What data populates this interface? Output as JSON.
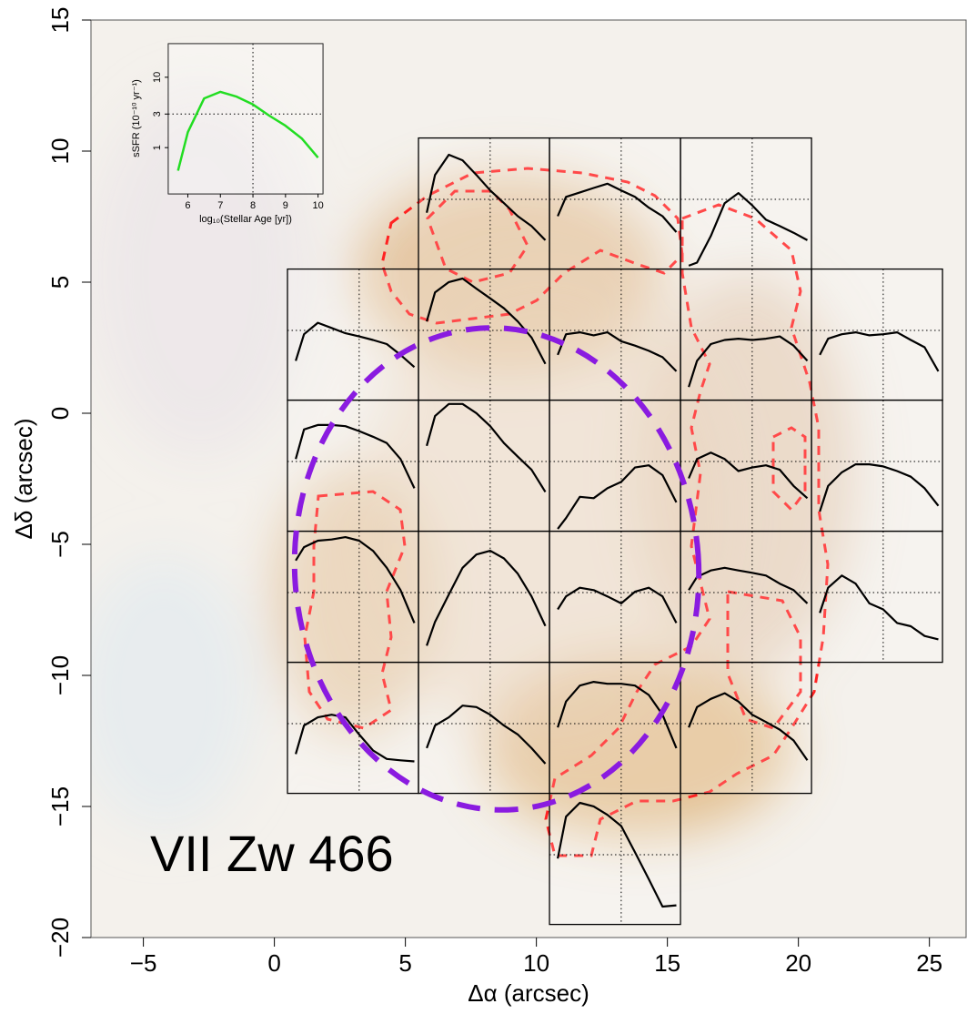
{
  "chart_data": {
    "type": "panel-map",
    "xlabel": "Δα (arcsec)",
    "ylabel": "Δδ (arcsec)",
    "label": "VII Zw 466",
    "xlim": [
      -7,
      26.4
    ],
    "ylim": [
      -20,
      15
    ],
    "xticks": [
      {
        "value": -5,
        "label": "−5"
      },
      0,
      5,
      10,
      15,
      20,
      25
    ],
    "yticks": [
      {
        "value": -20,
        "label": "−20"
      },
      {
        "value": -15,
        "label": "−15"
      },
      {
        "value": -10,
        "label": "−10"
      },
      {
        "value": -5,
        "label": "−5"
      },
      0,
      5,
      10,
      15
    ],
    "inset": {
      "xlabel": "log₁₀(Stellar Age [yr])",
      "ylabel": "sSFR (10⁻¹⁰ yr⁻¹)",
      "xlim": [
        5.4,
        10.15
      ],
      "ylim": [
        0.22,
        30
      ],
      "ylog": true,
      "xticks": [
        6,
        7,
        8,
        9,
        10
      ],
      "yticks": [
        1,
        3,
        10
      ],
      "ref_x": 8,
      "ref_y": 3,
      "color": "#22dd22",
      "x": [
        5.7,
        6,
        6.5,
        7,
        7.5,
        8,
        8.5,
        9,
        9.5,
        10
      ],
      "values": [
        0.47,
        1.66,
        5,
        6.2,
        5.3,
        4.1,
        2.85,
        2.05,
        1.35,
        0.72
      ]
    },
    "panels": {
      "color": "#000000",
      "items": [
        {
          "xlim": [
            5.5,
            10.5
          ],
          "ylim": [
            5.5,
            10.5
          ],
          "values": [
            1.82,
            7.5,
            16,
            13,
            7.5,
            4.2,
            2.6,
            1.6,
            1.1,
            0.65
          ]
        },
        {
          "xlim": [
            10.5,
            15.5
          ],
          "ylim": [
            5.5,
            10.5
          ],
          "values": [
            1.6,
            3.3,
            3.9,
            4.6,
            5.4,
            4.2,
            3.3,
            2.2,
            1.6,
            0.88
          ]
        },
        {
          "xlim": [
            15.5,
            20.5
          ],
          "ylim": [
            5.5,
            10.5
          ],
          "values": [
            0.25,
            0.28,
            0.76,
            2.6,
            3.8,
            2.4,
            1.4,
            1.1,
            0.86,
            0.65
          ]
        },
        {
          "xlim": [
            0.5,
            5.5
          ],
          "ylim": [
            0.5,
            5.5
          ],
          "values": [
            0.96,
            2.6,
            4.0,
            3.3,
            2.7,
            2.4,
            2.1,
            1.8,
            1.2,
            0.76
          ]
        },
        {
          "xlim": [
            5.5,
            10.5
          ],
          "ylim": [
            0.5,
            5.5
          ],
          "values": [
            4.2,
            12.5,
            18.4,
            21,
            14.4,
            10,
            6.9,
            4.2,
            2.3,
            0.86
          ]
        },
        {
          "xlim": [
            10.5,
            15.5
          ],
          "ylim": [
            0.5,
            5.5
          ],
          "values": [
            1.2,
            2.6,
            2.8,
            2.5,
            2.8,
            2.0,
            1.7,
            1.4,
            1.1,
            0.65
          ]
        },
        {
          "xlim": [
            15.5,
            20.5
          ],
          "ylim": [
            0.5,
            5.5
          ],
          "values": [
            0.36,
            0.96,
            1.8,
            2.1,
            2.2,
            2.1,
            2.2,
            2.4,
            1.7,
            0.96
          ]
        },
        {
          "xlim": [
            20.5,
            25.5
          ],
          "ylim": [
            0.5,
            5.5
          ],
          "values": [
            1.2,
            2.2,
            2.6,
            2.8,
            2.5,
            2.6,
            2.8,
            2.1,
            1.6,
            0.65
          ]
        },
        {
          "xlim": [
            0.5,
            5.5
          ],
          "ylim": [
            -4.5,
            0.5
          ],
          "values": [
            3.3,
            10,
            11.8,
            11.8,
            11.3,
            9.4,
            7.6,
            6.0,
            3.3,
            1.1
          ]
        },
        {
          "xlim": [
            5.5,
            10.5
          ],
          "ylim": [
            -4.5,
            0.5
          ],
          "values": [
            5.4,
            16.5,
            26,
            26,
            18.4,
            11.3,
            6,
            3.6,
            2.2,
            0.96
          ]
        },
        {
          "xlim": [
            10.5,
            15.5
          ],
          "ylim": [
            -4.5,
            0.5
          ],
          "values": [
            0.24,
            0.36,
            0.8,
            0.76,
            1.1,
            1.4,
            2.4,
            2.6,
            1.8,
            0.65
          ]
        },
        {
          "xlim": [
            15.5,
            20.5
          ],
          "ylim": [
            -4.5,
            0.5
          ],
          "values": [
            1.6,
            3.3,
            4.2,
            3.3,
            2.1,
            2.4,
            2.6,
            2.2,
            1.2,
            0.76
          ]
        },
        {
          "xlim": [
            20.5,
            25.5
          ],
          "ylim": [
            -4.5,
            0.5
          ],
          "values": [
            0.46,
            1.2,
            2.0,
            2.7,
            2.7,
            2.5,
            2.1,
            1.7,
            1.1,
            0.57
          ]
        },
        {
          "xlim": [
            0.5,
            5.5
          ],
          "ylim": [
            -9.5,
            -4.5
          ],
          "values": [
            10,
            16.5,
            21,
            22,
            24,
            21,
            14.4,
            7.6,
            3.3,
            0.96
          ]
        },
        {
          "xlim": [
            5.5,
            10.5
          ],
          "ylim": [
            -9.5,
            -4.5
          ],
          "values": [
            0.41,
            1.0,
            2.8,
            7.6,
            12.5,
            14.4,
            10.8,
            6.1,
            2.6,
            0.86
          ]
        },
        {
          "xlim": [
            10.5,
            15.5
          ],
          "ylim": [
            -9.5,
            -4.5
          ],
          "values": [
            1.6,
            2.6,
            3.6,
            3.3,
            2.6,
            2.0,
            3.1,
            3.6,
            2.6,
            0.96
          ]
        },
        {
          "xlim": [
            15.5,
            20.5
          ],
          "ylim": [
            -9.5,
            -4.5
          ],
          "values": [
            3.3,
            5.4,
            6.9,
            7.6,
            6.9,
            6.3,
            5.7,
            4.2,
            3.3,
            2.0
          ]
        },
        {
          "xlim": [
            20.5,
            25.5
          ],
          "ylim": [
            -9.5,
            -4.5
          ],
          "values": [
            1.4,
            3.6,
            5.7,
            4.2,
            2.0,
            1.6,
            0.96,
            0.85,
            0.59,
            0.52
          ]
        },
        {
          "xlim": [
            0.5,
            5.5
          ],
          "ylim": [
            -14.5,
            -9.5
          ],
          "values": [
            0.96,
            2.8,
            3.8,
            4.2,
            3.8,
            2.0,
            1.1,
            0.8,
            0.76,
            0.73
          ]
        },
        {
          "xlim": [
            5.5,
            10.5
          ],
          "ylim": [
            -14.5,
            -9.5
          ],
          "values": [
            1.2,
            2.8,
            3.8,
            5.9,
            5.6,
            4.2,
            2.8,
            2.0,
            1.2,
            0.67
          ]
        },
        {
          "xlim": [
            10.5,
            15.5
          ],
          "ylim": [
            -14.5,
            -9.5
          ],
          "values": [
            2.6,
            6.9,
            12.5,
            14.4,
            13.4,
            13.4,
            12.5,
            8.8,
            4.2,
            1.2
          ]
        },
        {
          "xlim": [
            15.5,
            20.5
          ],
          "ylim": [
            -14.5,
            -9.5
          ],
          "values": [
            2.6,
            5.6,
            7.6,
            9.4,
            6.9,
            4.2,
            3.2,
            2.4,
            1.6,
            0.76
          ]
        },
        {
          "xlim": [
            10.5,
            15.5
          ],
          "ylim": [
            -19.5,
            -14.5
          ],
          "values": [
            2.6,
            12.5,
            21,
            18.4,
            13.4,
            8.8,
            3.3,
            1.2,
            0.43,
            0.45
          ]
        }
      ]
    }
  }
}
